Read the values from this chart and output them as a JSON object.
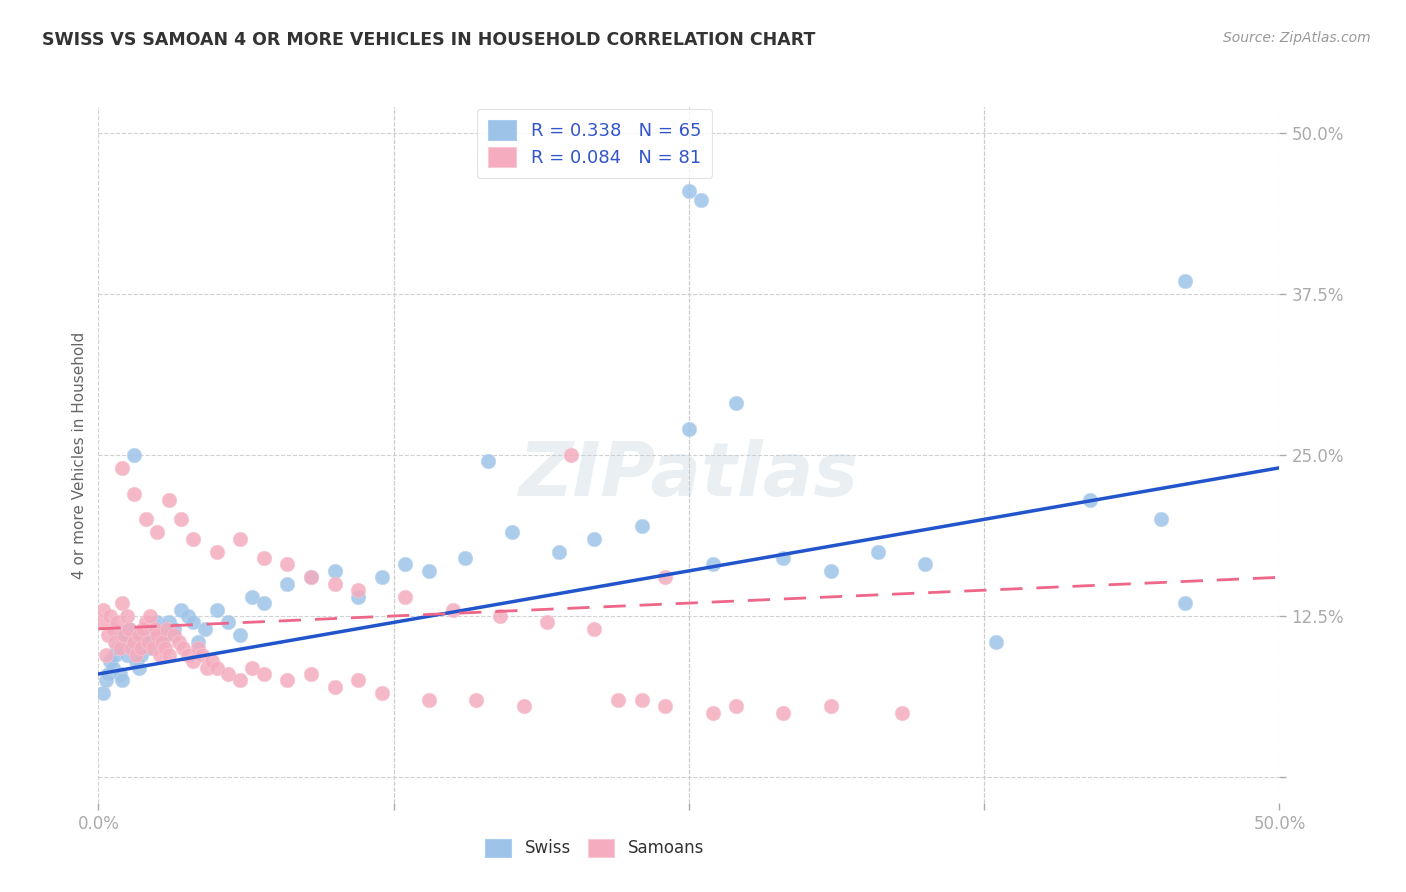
{
  "title": "SWISS VS SAMOAN 4 OR MORE VEHICLES IN HOUSEHOLD CORRELATION CHART",
  "source": "Source: ZipAtlas.com",
  "ylabel": "4 or more Vehicles in Household",
  "xlim": [
    0.0,
    0.5
  ],
  "ylim": [
    -0.02,
    0.52
  ],
  "grid_color": "#cccccc",
  "background_color": "#ffffff",
  "watermark": "ZIPatlas",
  "swiss_R": "0.338",
  "swiss_N": "65",
  "samoan_R": "0.084",
  "samoan_N": "81",
  "swiss_dot_color": "#9dc3e8",
  "samoan_dot_color": "#f4acbe",
  "swiss_line_color": "#2255cc",
  "samoan_line_color": "#ee6688",
  "legend_text_color": "#3355cc",
  "title_color": "#333333",
  "source_color": "#999999",
  "tick_color": "#5588cc",
  "axis_label_color": "#666666",
  "swiss_line_start_y": 0.08,
  "swiss_line_end_y": 0.24,
  "samoan_line_start_y": 0.115,
  "samoan_line_end_y": 0.155,
  "swiss_x": [
    0.002,
    0.003,
    0.004,
    0.005,
    0.006,
    0.007,
    0.008,
    0.009,
    0.01,
    0.011,
    0.012,
    0.013,
    0.014,
    0.015,
    0.016,
    0.017,
    0.018,
    0.019,
    0.02,
    0.022,
    0.024,
    0.025,
    0.026,
    0.028,
    0.03,
    0.032,
    0.035,
    0.038,
    0.04,
    0.042,
    0.045,
    0.05,
    0.055,
    0.06,
    0.065,
    0.07,
    0.08,
    0.09,
    0.1,
    0.11,
    0.12,
    0.13,
    0.14,
    0.155,
    0.165,
    0.175,
    0.195,
    0.21,
    0.23,
    0.25,
    0.26,
    0.27,
    0.29,
    0.31,
    0.33,
    0.35,
    0.38,
    0.42,
    0.45,
    0.46,
    0.01,
    0.015,
    0.25,
    0.255,
    0.46
  ],
  "swiss_y": [
    0.065,
    0.075,
    0.08,
    0.09,
    0.085,
    0.095,
    0.1,
    0.08,
    0.11,
    0.105,
    0.095,
    0.115,
    0.11,
    0.1,
    0.09,
    0.085,
    0.095,
    0.105,
    0.11,
    0.1,
    0.115,
    0.12,
    0.105,
    0.11,
    0.12,
    0.115,
    0.13,
    0.125,
    0.12,
    0.105,
    0.115,
    0.13,
    0.12,
    0.11,
    0.14,
    0.135,
    0.15,
    0.155,
    0.16,
    0.14,
    0.155,
    0.165,
    0.16,
    0.17,
    0.245,
    0.19,
    0.175,
    0.185,
    0.195,
    0.27,
    0.165,
    0.29,
    0.17,
    0.16,
    0.175,
    0.165,
    0.105,
    0.215,
    0.2,
    0.135,
    0.075,
    0.25,
    0.455,
    0.448,
    0.385
  ],
  "samoan_x": [
    0.001,
    0.002,
    0.003,
    0.004,
    0.005,
    0.006,
    0.007,
    0.008,
    0.009,
    0.01,
    0.011,
    0.012,
    0.013,
    0.014,
    0.015,
    0.016,
    0.017,
    0.018,
    0.019,
    0.02,
    0.021,
    0.022,
    0.023,
    0.024,
    0.025,
    0.026,
    0.027,
    0.028,
    0.029,
    0.03,
    0.032,
    0.034,
    0.036,
    0.038,
    0.04,
    0.042,
    0.044,
    0.046,
    0.048,
    0.05,
    0.055,
    0.06,
    0.065,
    0.07,
    0.08,
    0.09,
    0.1,
    0.11,
    0.12,
    0.14,
    0.16,
    0.18,
    0.2,
    0.22,
    0.24,
    0.26,
    0.27,
    0.29,
    0.31,
    0.34,
    0.01,
    0.015,
    0.02,
    0.025,
    0.03,
    0.035,
    0.04,
    0.05,
    0.06,
    0.07,
    0.08,
    0.09,
    0.1,
    0.11,
    0.13,
    0.15,
    0.17,
    0.19,
    0.21,
    0.23,
    0.24
  ],
  "samoan_y": [
    0.12,
    0.13,
    0.095,
    0.11,
    0.125,
    0.115,
    0.105,
    0.12,
    0.1,
    0.135,
    0.11,
    0.125,
    0.115,
    0.1,
    0.105,
    0.095,
    0.11,
    0.1,
    0.115,
    0.12,
    0.105,
    0.125,
    0.1,
    0.115,
    0.11,
    0.095,
    0.105,
    0.1,
    0.115,
    0.095,
    0.11,
    0.105,
    0.1,
    0.095,
    0.09,
    0.1,
    0.095,
    0.085,
    0.09,
    0.085,
    0.08,
    0.075,
    0.085,
    0.08,
    0.075,
    0.08,
    0.07,
    0.075,
    0.065,
    0.06,
    0.06,
    0.055,
    0.25,
    0.06,
    0.055,
    0.05,
    0.055,
    0.05,
    0.055,
    0.05,
    0.24,
    0.22,
    0.2,
    0.19,
    0.215,
    0.2,
    0.185,
    0.175,
    0.185,
    0.17,
    0.165,
    0.155,
    0.15,
    0.145,
    0.14,
    0.13,
    0.125,
    0.12,
    0.115,
    0.06,
    0.155
  ]
}
